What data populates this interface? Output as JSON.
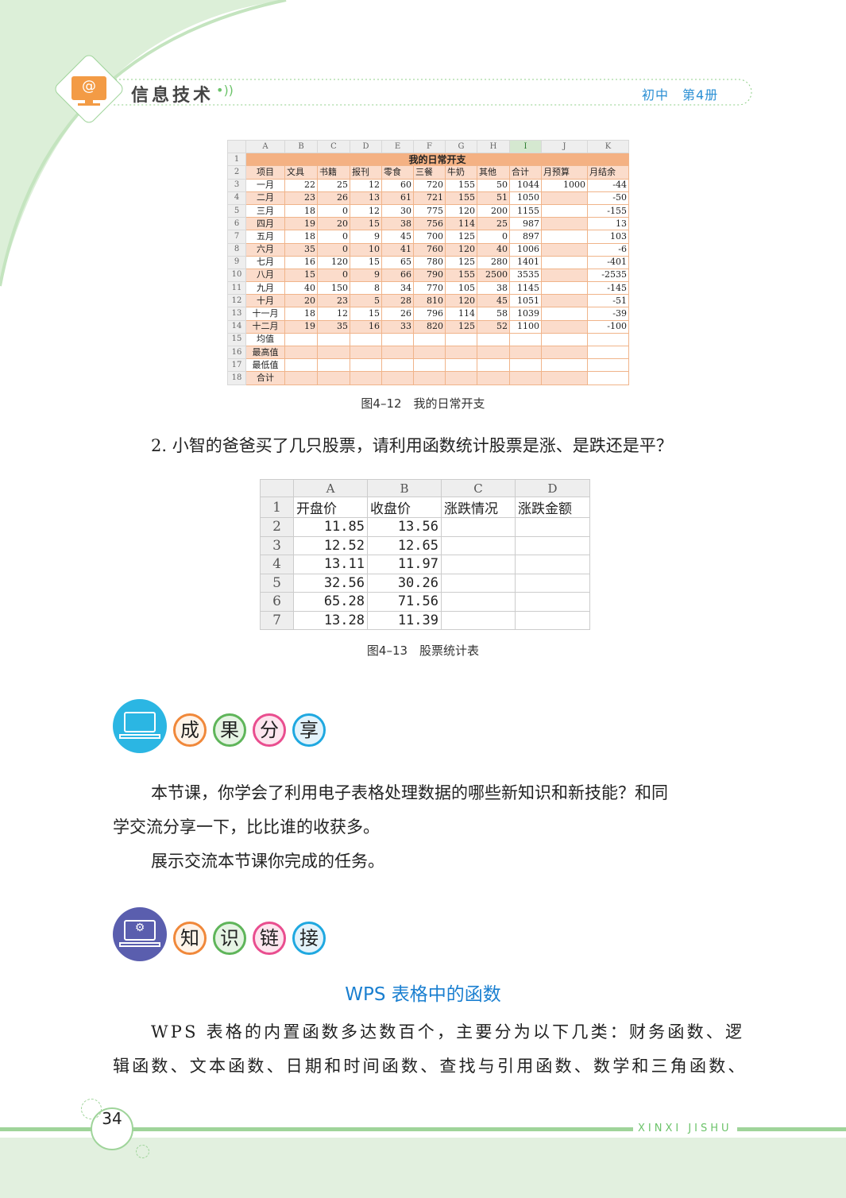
{
  "header": {
    "title": "信息技术",
    "grade": "初中",
    "volume": "第4册",
    "logo_icon": "monitor-at-icon"
  },
  "table1": {
    "col_headers": [
      "",
      "A",
      "B",
      "C",
      "D",
      "E",
      "F",
      "G",
      "H",
      "I",
      "J",
      "K"
    ],
    "title": "我的日常开支",
    "headers": [
      "项目",
      "文具",
      "书籍",
      "报刊",
      "零食",
      "三餐",
      "牛奶",
      "其他",
      "合计",
      "月预算",
      "月结余"
    ],
    "rows": [
      [
        "一月",
        "22",
        "25",
        "12",
        "60",
        "720",
        "155",
        "50",
        "1044",
        "1000",
        "-44"
      ],
      [
        "二月",
        "23",
        "26",
        "13",
        "61",
        "721",
        "155",
        "51",
        "1050",
        "",
        "-50"
      ],
      [
        "三月",
        "18",
        "0",
        "12",
        "30",
        "775",
        "120",
        "200",
        "1155",
        "",
        "-155"
      ],
      [
        "四月",
        "19",
        "20",
        "15",
        "38",
        "756",
        "114",
        "25",
        "987",
        "",
        "13"
      ],
      [
        "五月",
        "18",
        "0",
        "9",
        "45",
        "700",
        "125",
        "0",
        "897",
        "",
        "103"
      ],
      [
        "六月",
        "35",
        "0",
        "10",
        "41",
        "760",
        "120",
        "40",
        "1006",
        "",
        "-6"
      ],
      [
        "七月",
        "16",
        "120",
        "15",
        "65",
        "780",
        "125",
        "280",
        "1401",
        "",
        "-401"
      ],
      [
        "八月",
        "15",
        "0",
        "9",
        "66",
        "790",
        "155",
        "2500",
        "3535",
        "",
        "-2535"
      ],
      [
        "九月",
        "40",
        "150",
        "8",
        "34",
        "770",
        "105",
        "38",
        "1145",
        "",
        "-145"
      ],
      [
        "十月",
        "20",
        "23",
        "5",
        "28",
        "810",
        "120",
        "45",
        "1051",
        "",
        "-51"
      ],
      [
        "十一月",
        "18",
        "12",
        "15",
        "26",
        "796",
        "114",
        "58",
        "1039",
        "",
        "-39"
      ],
      [
        "十二月",
        "19",
        "35",
        "16",
        "33",
        "820",
        "125",
        "52",
        "1100",
        "",
        "-100"
      ],
      [
        "均值",
        "",
        "",
        "",
        "",
        "",
        "",
        "",
        "",
        "",
        ""
      ],
      [
        "最高值",
        "",
        "",
        "",
        "",
        "",
        "",
        "",
        "",
        "",
        ""
      ],
      [
        "最低值",
        "",
        "",
        "",
        "",
        "",
        "",
        "",
        "",
        "",
        ""
      ],
      [
        "合计",
        "",
        "",
        "",
        "",
        "",
        "",
        "",
        "",
        "",
        ""
      ]
    ],
    "caption": "图4–12　我的日常开支"
  },
  "question": "2. 小智的爸爸买了几只股票，请利用函数统计股票是涨、是跌还是平？",
  "table2": {
    "col_headers": [
      "",
      "A",
      "B",
      "C",
      "D"
    ],
    "headers": [
      "开盘价",
      "收盘价",
      "涨跌情况",
      "涨跌金额"
    ],
    "rows": [
      [
        "11.85",
        "13.56",
        "",
        ""
      ],
      [
        "12.52",
        "12.65",
        "",
        ""
      ],
      [
        "13.11",
        "11.97",
        "",
        ""
      ],
      [
        "32.56",
        "30.26",
        "",
        ""
      ],
      [
        "65.28",
        "71.56",
        "",
        ""
      ],
      [
        "13.28",
        "11.39",
        "",
        ""
      ]
    ],
    "caption": "图4–13　股票统计表"
  },
  "share": {
    "icon": "laptop-chip-icon",
    "chars": [
      "成",
      "果",
      "分",
      "享"
    ],
    "paragraphs": [
      "本节课，你学会了利用电子表格处理数据的哪些新知识和新技能？和同",
      "学交流分享一下，比比谁的收获多。",
      "展示交流本节课你完成的任务。"
    ]
  },
  "link": {
    "icon": "laptop-gears-icon",
    "chars": [
      "知",
      "识",
      "链",
      "接"
    ],
    "title": "WPS 表格中的函数",
    "lines": [
      "WPS 表格的内置函数多达数百个，主要分为以下几类：财务函数、逻",
      "辑函数、文本函数、日期和时间函数、查找与引用函数、数学和三角函数、"
    ]
  },
  "footer": {
    "page": "34",
    "label": "XINXI JISHU"
  },
  "colors": {
    "green": "#9fd49a",
    "orange": "#f0883a",
    "blue": "#1a7fd0",
    "cell_shade": "#fbdccb",
    "title_fill": "#f4b183"
  }
}
